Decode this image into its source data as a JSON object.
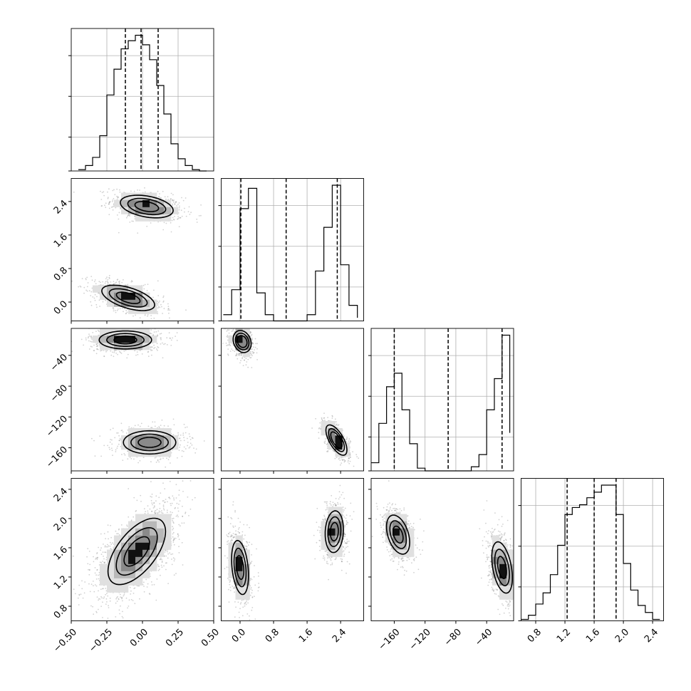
{
  "chart_data": {
    "type": "corner",
    "title": "",
    "n_params": 4,
    "params": [
      {
        "label": "",
        "range": [
          -0.5,
          0.5
        ],
        "ticks": [
          -0.5,
          -0.25,
          0.0,
          0.25,
          0.5
        ],
        "tick_labels": [
          "−0.50",
          "−0.25",
          "0.00",
          "0.25",
          "0.50"
        ]
      },
      {
        "label": "",
        "range": [
          -0.45,
          2.95
        ],
        "ticks": [
          0.0,
          0.8,
          1.6,
          2.4
        ],
        "tick_labels": [
          "0.0",
          "0.8",
          "1.6",
          "2.4"
        ]
      },
      {
        "label": "",
        "range": [
          -190,
          -5
        ],
        "ticks": [
          -160,
          -120,
          -80,
          -40
        ],
        "tick_labels": [
          "−160",
          "−120",
          "−80",
          "−40"
        ]
      },
      {
        "label": "",
        "range": [
          0.6,
          2.55
        ],
        "ticks": [
          0.8,
          1.2,
          1.6,
          2.0,
          2.4
        ],
        "tick_labels": [
          "0.8",
          "1.2",
          "1.6",
          "2.0",
          "2.4"
        ]
      }
    ],
    "diagonal": [
      {
        "bin_edges": [
          -0.45,
          -0.4,
          -0.35,
          -0.3,
          -0.25,
          -0.2,
          -0.15,
          -0.1,
          -0.05,
          0.0,
          0.05,
          0.1,
          0.15,
          0.2,
          0.25,
          0.3,
          0.35,
          0.4,
          0.45
        ],
        "counts": [
          0.01,
          0.04,
          0.1,
          0.26,
          0.56,
          0.75,
          0.9,
          0.96,
          1.0,
          0.93,
          0.82,
          0.63,
          0.42,
          0.2,
          0.09,
          0.04,
          0.01,
          0.0
        ],
        "quantiles": [
          -0.12,
          -0.01,
          0.11
        ]
      },
      {
        "bin_edges": [
          -0.4,
          -0.2,
          0.0,
          0.2,
          0.4,
          0.6,
          0.8,
          1.0,
          1.2,
          1.4,
          1.6,
          1.8,
          2.0,
          2.2,
          2.4,
          2.6,
          2.8
        ],
        "counts": [
          0.04,
          0.2,
          0.72,
          0.85,
          0.18,
          0.04,
          0,
          0,
          0,
          0,
          0.04,
          0.32,
          0.6,
          0.87,
          0.36,
          0.1,
          0.02
        ],
        "quantiles": [
          0.02,
          1.1,
          2.32
        ]
      },
      {
        "bin_edges": [
          -190,
          -180,
          -170,
          -160,
          -150,
          -140,
          -130,
          -120,
          -110,
          -100,
          -90,
          -80,
          -70,
          -60,
          -50,
          -40,
          -30,
          -20,
          -10
        ],
        "counts": [
          0.06,
          0.35,
          0.62,
          0.72,
          0.45,
          0.2,
          0.02,
          0,
          0,
          0,
          0,
          0,
          0,
          0.03,
          0.12,
          0.45,
          0.68,
          1.0,
          0.28
        ],
        "quantiles": [
          -160,
          -90,
          -20
        ]
      },
      {
        "bin_edges": [
          0.6,
          0.7,
          0.8,
          0.9,
          1.0,
          1.1,
          1.2,
          1.3,
          1.4,
          1.5,
          1.6,
          1.7,
          1.8,
          1.9,
          2.0,
          2.1,
          2.2,
          2.3,
          2.4,
          2.5
        ],
        "counts": [
          0.01,
          0.04,
          0.12,
          0.2,
          0.33,
          0.54,
          0.76,
          0.81,
          0.83,
          0.88,
          0.92,
          0.97,
          0.97,
          0.76,
          0.41,
          0.22,
          0.11,
          0.06,
          0.01
        ],
        "quantiles": [
          1.23,
          1.6,
          1.9
        ]
      }
    ],
    "pairs": [
      {
        "row": 1,
        "col": 0,
        "modes": [
          {
            "x": 0.03,
            "y": 2.28,
            "sx": 0.11,
            "sy": 0.16,
            "rho": -0.35,
            "w": 0.5
          },
          {
            "x": -0.1,
            "y": 0.1,
            "sx": 0.11,
            "sy": 0.18,
            "rho": -0.55,
            "w": 0.5
          }
        ]
      },
      {
        "row": 2,
        "col": 0,
        "modes": [
          {
            "x": -0.12,
            "y": -20,
            "sx": 0.11,
            "sy": 7,
            "rho": 0.0,
            "w": 0.5
          },
          {
            "x": 0.05,
            "y": -153,
            "sx": 0.11,
            "sy": 9,
            "rho": 0.0,
            "w": 0.5
          }
        ]
      },
      {
        "row": 2,
        "col": 1,
        "modes": [
          {
            "x": 0.05,
            "y": -22,
            "sx": 0.12,
            "sy": 8,
            "rho": -0.2,
            "w": 0.5
          },
          {
            "x": 2.3,
            "y": -150,
            "sx": 0.14,
            "sy": 11,
            "rho": -0.65,
            "w": 0.5
          }
        ]
      },
      {
        "row": 3,
        "col": 0,
        "modes": [
          {
            "x": -0.04,
            "y": 1.55,
            "sx": 0.12,
            "sy": 0.27,
            "rho": 0.6,
            "w": 1.0
          }
        ]
      },
      {
        "row": 3,
        "col": 1,
        "modes": [
          {
            "x": 0.0,
            "y": 1.33,
            "sx": 0.12,
            "sy": 0.22,
            "rho": -0.3,
            "w": 0.5
          },
          {
            "x": 2.25,
            "y": 1.82,
            "sx": 0.13,
            "sy": 0.17,
            "rho": 0.1,
            "w": 0.5
          }
        ]
      },
      {
        "row": 3,
        "col": 2,
        "modes": [
          {
            "x": -155,
            "y": 1.78,
            "sx": 9,
            "sy": 0.16,
            "rho": -0.4,
            "w": 0.5
          },
          {
            "x": -20,
            "y": 1.33,
            "sx": 8,
            "sy": 0.21,
            "rho": -0.4,
            "w": 0.5
          }
        ]
      }
    ],
    "contour_levels": [
      0.12,
      0.35,
      0.6
    ],
    "grid": true,
    "legend": "none"
  }
}
